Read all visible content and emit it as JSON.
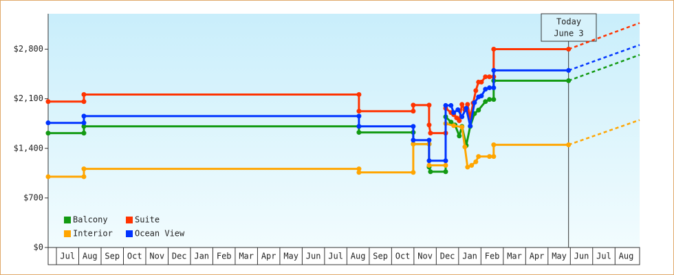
{
  "chart_data": {
    "type": "step-line",
    "categories": [
      "Jul",
      "Aug",
      "Sep",
      "Oct",
      "Nov",
      "Dec",
      "Jan",
      "Feb",
      "Mar",
      "Apr",
      "May",
      "Jun",
      "Jul",
      "Aug",
      "Sep",
      "Oct",
      "Nov",
      "Dec",
      "Jan",
      "Feb",
      "Mar",
      "Apr",
      "May",
      "Jun",
      "Jul",
      "Aug"
    ],
    "xlim": [
      -0.37,
      26.1
    ],
    "ylim": [
      0,
      3300
    ],
    "yticks": [
      {
        "value": 0,
        "label": "$0"
      },
      {
        "value": 700,
        "label": "$700"
      },
      {
        "value": 1400,
        "label": "$1,400"
      },
      {
        "value": 2100,
        "label": "$2,100"
      },
      {
        "value": 2800,
        "label": "$2,800"
      }
    ],
    "grid": false,
    "legend": "lower-left",
    "today_label": "Today",
    "today_date": "June 3",
    "today_x": 22.92,
    "forecast_x": 26.1,
    "series": [
      {
        "name": "Balcony",
        "color": "#129a12",
        "x": [
          -0.37,
          1.23,
          1.23,
          13.54,
          13.54,
          15.97,
          15.97,
          16.68,
          16.68,
          16.74,
          17.42,
          17.42,
          17.66,
          17.84,
          18.03,
          18.15,
          18.34,
          18.52,
          18.71,
          18.89,
          19.2,
          19.38,
          19.57,
          19.57,
          22.92
        ],
        "values": [
          1615,
          1615,
          1710,
          1710,
          1625,
          1625,
          1460,
          1460,
          1135,
          1070,
          1070,
          1845,
          1770,
          1730,
          1575,
          1710,
          1440,
          1710,
          1890,
          1940,
          2060,
          2090,
          2090,
          2355,
          2355
        ],
        "forecast": 2720
      },
      {
        "name": "Suite",
        "color": "#ff3300",
        "x": [
          -0.37,
          1.23,
          1.23,
          13.54,
          13.54,
          15.97,
          15.97,
          16.68,
          16.68,
          16.74,
          17.42,
          17.42,
          17.66,
          17.78,
          17.91,
          18.03,
          18.15,
          18.28,
          18.4,
          18.52,
          18.65,
          18.77,
          18.89,
          19.02,
          19.2,
          19.38,
          19.57,
          19.57,
          22.92
        ],
        "values": [
          2060,
          2060,
          2160,
          2160,
          1925,
          1925,
          2010,
          2010,
          1730,
          1615,
          1615,
          1965,
          1905,
          1875,
          1830,
          1790,
          2020,
          1945,
          2020,
          1830,
          2040,
          2215,
          2335,
          2335,
          2410,
          2410,
          2410,
          2800,
          2800
        ],
        "forecast": 3170
      },
      {
        "name": "Interior",
        "color": "#ffa500",
        "x": [
          -0.37,
          1.23,
          1.23,
          13.54,
          13.54,
          15.97,
          15.97,
          16.68,
          16.68,
          17.42,
          17.42,
          17.78,
          18.15,
          18.28,
          18.4,
          18.58,
          18.77,
          18.89,
          19.38,
          19.57,
          19.57,
          22.92
        ],
        "values": [
          1000,
          1000,
          1110,
          1110,
          1060,
          1060,
          1460,
          1460,
          1160,
          1160,
          1750,
          1720,
          1700,
          1420,
          1135,
          1160,
          1210,
          1285,
          1285,
          1285,
          1450,
          1450
        ],
        "forecast": 1800
      },
      {
        "name": "Ocean View",
        "color": "#0033ff",
        "x": [
          -0.37,
          1.23,
          1.23,
          13.54,
          13.54,
          15.97,
          15.97,
          16.68,
          16.68,
          17.42,
          17.42,
          17.66,
          17.78,
          17.97,
          18.15,
          18.34,
          18.52,
          18.71,
          18.89,
          19.02,
          19.2,
          19.38,
          19.57,
          19.57,
          22.92
        ],
        "values": [
          1760,
          1760,
          1855,
          1855,
          1710,
          1710,
          1515,
          1515,
          1225,
          1225,
          2005,
          2005,
          1905,
          1945,
          1845,
          1965,
          1715,
          2045,
          2125,
          2140,
          2235,
          2255,
          2255,
          2500,
          2500
        ],
        "forecast": 2860
      }
    ]
  }
}
